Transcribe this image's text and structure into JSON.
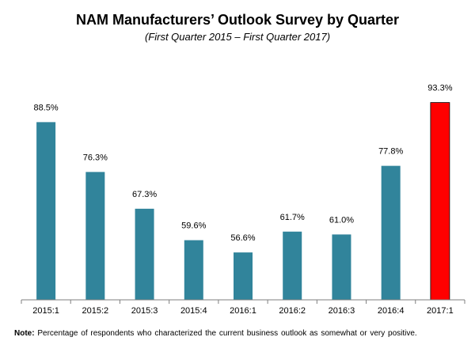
{
  "chart_data": {
    "type": "bar",
    "title": "NAM Manufacturers’ Outlook Survey by Quarter",
    "subtitle": "(First Quarter 2015 – First Quarter 2017)",
    "categories": [
      "2015:1",
      "2015:2",
      "2015:3",
      "2015:4",
      "2016:1",
      "2016:2",
      "2016:3",
      "2016:4",
      "2017:1"
    ],
    "values": [
      88.5,
      76.3,
      67.3,
      59.6,
      56.6,
      61.7,
      61.0,
      77.8,
      93.3
    ],
    "value_labels": [
      "88.5%",
      "76.3%",
      "67.3%",
      "59.6%",
      "56.6%",
      "61.7%",
      "61.0%",
      "77.8%",
      "93.3%"
    ],
    "ylim": [
      45,
      100
    ],
    "xlabel": "",
    "ylabel": "",
    "grid": false,
    "colors": {
      "default_bar": "#31849b",
      "highlight_bar": "#ff0000",
      "bar_outline": "#000000"
    },
    "highlight_index": 8
  },
  "note": {
    "label": "Note:",
    "text": "Percentage of respondents who characterized the current business outlook as somewhat or very positive."
  }
}
